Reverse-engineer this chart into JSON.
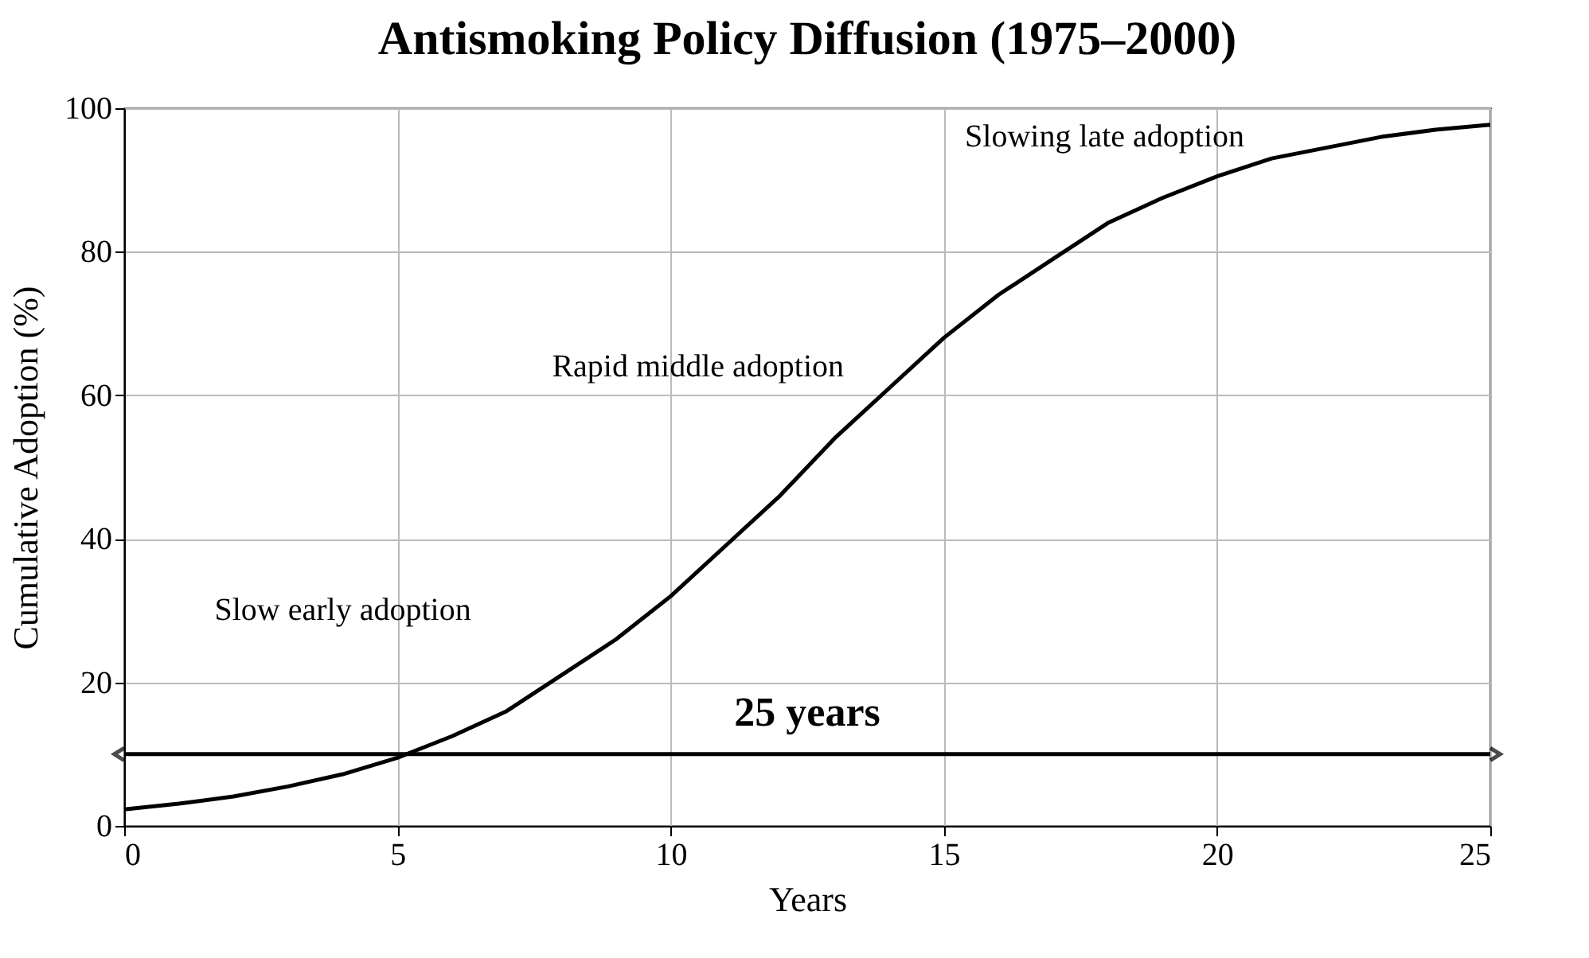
{
  "chart_data": {
    "type": "line",
    "title": "Antismoking Policy Diffusion (1975–2000)",
    "xlabel": "Years",
    "ylabel": "Cumulative Adoption (%)",
    "x": [
      0,
      1,
      2,
      3,
      4,
      5,
      6,
      7,
      8,
      9,
      10,
      11,
      12,
      13,
      14,
      15,
      16,
      17,
      18,
      19,
      20,
      21,
      22,
      23,
      24,
      25
    ],
    "series": [
      {
        "color": "#000000",
        "values": [
          2.3,
          3.1,
          4.1,
          5.5,
          7.2,
          9.5,
          12.5,
          16,
          21,
          26,
          32,
          39,
          46,
          54,
          61,
          68,
          74,
          79,
          84,
          87.5,
          90.5,
          93,
          94.5,
          96,
          97,
          97.7
        ]
      }
    ],
    "xlim": [
      0,
      25
    ],
    "ylim": [
      0,
      100
    ],
    "xticks": [
      0,
      5,
      10,
      15,
      20,
      25
    ],
    "yticks": [
      0,
      20,
      40,
      60,
      80,
      100
    ],
    "grid": true,
    "ref_lines": [
      {
        "axis": "y",
        "value": 10,
        "label": "25 years",
        "color": "#000000"
      }
    ],
    "annotations": [
      "Slow early adoption",
      "Rapid middle adoption",
      "Slowing late adoption"
    ]
  }
}
